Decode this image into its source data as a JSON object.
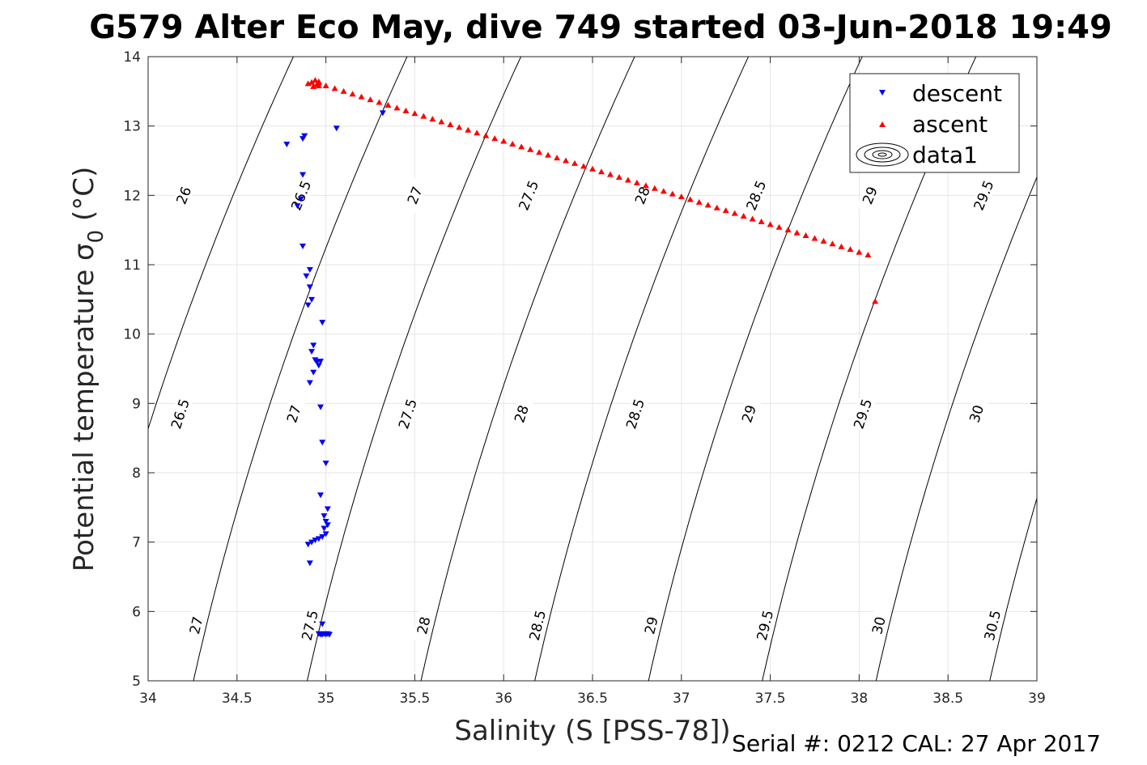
{
  "chart_data": {
    "type": "scatter",
    "title": "G579 Alter Eco May, dive 749 started 03-Jun-2018 19:49",
    "xlabel": "Salinity (S [PSS-78])",
    "ylabel": "Potential temperature σ",
    "ylabel_sub": "0",
    "ylabel_unit": " (°C)",
    "footer": "Serial #: 0212  CAL: 27 Apr 2017",
    "xlim": [
      34,
      39
    ],
    "ylim": [
      5,
      14
    ],
    "xticks": [
      34,
      34.5,
      35,
      35.5,
      36,
      36.5,
      37,
      37.5,
      38,
      38.5,
      39
    ],
    "xtick_labels": [
      "34",
      "34.5",
      "35",
      "35.5",
      "36",
      "36.5",
      "37",
      "37.5",
      "38",
      "38.5",
      "39"
    ],
    "yticks": [
      5,
      6,
      7,
      8,
      9,
      10,
      11,
      12,
      13,
      14
    ],
    "ytick_labels": [
      "5",
      "6",
      "7",
      "8",
      "9",
      "10",
      "11",
      "12",
      "13",
      "14"
    ],
    "grid": true,
    "legend_position": "top-right",
    "legend": [
      "descent",
      "ascent",
      "data1"
    ],
    "series": [
      {
        "name": "descent",
        "marker": "triangle-down",
        "color": "#0000ff",
        "x": [
          35.06,
          35.32,
          34.88,
          34.87,
          34.78,
          34.87,
          34.86,
          34.84,
          34.87,
          34.91,
          34.89,
          34.91,
          34.92,
          34.9,
          34.98,
          34.93,
          34.92,
          34.94,
          34.95,
          34.97,
          34.96,
          34.93,
          34.91,
          34.97,
          34.98,
          35.0,
          34.97,
          35.01,
          34.99,
          35.0,
          35.01,
          34.99,
          35.0,
          34.98,
          34.96,
          34.94,
          34.92,
          34.9,
          34.91,
          34.98,
          34.96,
          34.97,
          34.98,
          34.99,
          35.0,
          35.01,
          35.02
        ],
        "y": [
          12.97,
          13.19,
          12.86,
          12.82,
          12.74,
          12.3,
          11.95,
          11.85,
          11.27,
          10.93,
          10.84,
          10.68,
          10.5,
          10.42,
          10.17,
          9.84,
          9.75,
          9.63,
          9.6,
          9.61,
          9.55,
          9.45,
          9.3,
          8.95,
          8.44,
          8.14,
          7.68,
          7.48,
          7.38,
          7.3,
          7.25,
          7.2,
          7.12,
          7.08,
          7.05,
          7.03,
          7.0,
          6.97,
          6.7,
          5.82,
          5.68,
          5.67,
          5.67,
          5.68,
          5.67,
          5.68,
          5.67
        ]
      },
      {
        "name": "ascent",
        "marker": "triangle-up",
        "color": "#ff0000",
        "x": [
          34.9,
          34.92,
          34.94,
          34.96,
          34.96,
          34.95,
          34.96,
          34.93,
          35.0,
          35.05,
          35.1,
          35.15,
          35.2,
          35.25,
          35.3,
          35.35,
          35.4,
          35.45,
          35.5,
          35.55,
          35.6,
          35.65,
          35.7,
          35.75,
          35.8,
          35.85,
          35.9,
          35.95,
          36.0,
          36.05,
          36.1,
          36.15,
          36.2,
          36.25,
          36.3,
          36.35,
          36.4,
          36.45,
          36.5,
          36.55,
          36.6,
          36.65,
          36.7,
          36.75,
          36.8,
          36.85,
          36.9,
          36.95,
          37.0,
          37.05,
          37.1,
          37.15,
          37.2,
          37.25,
          37.3,
          37.35,
          37.4,
          37.45,
          37.5,
          37.55,
          37.6,
          37.65,
          37.7,
          37.75,
          37.8,
          37.85,
          37.9,
          37.95,
          38.0,
          38.05,
          38.09
        ],
        "y": [
          13.61,
          13.63,
          13.66,
          13.62,
          13.58,
          13.6,
          13.64,
          13.57,
          13.58,
          13.54,
          13.5,
          13.46,
          13.42,
          13.38,
          13.34,
          13.3,
          13.26,
          13.22,
          13.18,
          13.14,
          13.1,
          13.06,
          13.02,
          12.98,
          12.94,
          12.9,
          12.86,
          12.82,
          12.78,
          12.74,
          12.7,
          12.66,
          12.62,
          12.58,
          12.54,
          12.5,
          12.46,
          12.42,
          12.38,
          12.34,
          12.3,
          12.26,
          12.22,
          12.18,
          12.14,
          12.1,
          12.06,
          12.02,
          11.98,
          11.94,
          11.9,
          11.86,
          11.82,
          11.78,
          11.74,
          11.7,
          11.66,
          11.62,
          11.58,
          11.54,
          11.5,
          11.46,
          11.42,
          11.38,
          11.34,
          11.3,
          11.26,
          11.22,
          11.18,
          11.14,
          10.47
        ]
      }
    ],
    "contours": [
      {
        "sigma": "26",
        "x0": 33.615,
        "labels": [
          [
            34.2,
            12.0
          ]
        ]
      },
      {
        "sigma": "26.5",
        "x0": 34.255,
        "labels": [
          [
            34.86,
            12.0
          ],
          [
            34.18,
            8.85
          ]
        ]
      },
      {
        "sigma": "27",
        "x0": 34.895,
        "labels": [
          [
            35.5,
            12.0
          ],
          [
            34.82,
            8.85
          ],
          [
            34.27,
            5.8
          ]
        ]
      },
      {
        "sigma": "27.5",
        "x0": 35.535,
        "labels": [
          [
            36.14,
            12.0
          ],
          [
            35.46,
            8.85
          ],
          [
            34.91,
            5.8
          ]
        ]
      },
      {
        "sigma": "28",
        "x0": 36.175,
        "labels": [
          [
            36.78,
            12.0
          ],
          [
            36.1,
            8.85
          ],
          [
            35.55,
            5.8
          ]
        ]
      },
      {
        "sigma": "28.5",
        "x0": 36.815,
        "labels": [
          [
            37.42,
            12.0
          ],
          [
            36.74,
            8.85
          ],
          [
            36.19,
            5.8
          ]
        ]
      },
      {
        "sigma": "29",
        "x0": 37.455,
        "labels": [
          [
            38.06,
            12.0
          ],
          [
            37.38,
            8.85
          ],
          [
            36.83,
            5.8
          ]
        ]
      },
      {
        "sigma": "29.5",
        "x0": 38.095,
        "labels": [
          [
            38.7,
            12.0
          ],
          [
            38.02,
            8.85
          ],
          [
            37.47,
            5.8
          ]
        ]
      },
      {
        "sigma": "30",
        "x0": 38.735,
        "labels": [
          [
            38.66,
            8.85
          ],
          [
            38.11,
            5.8
          ]
        ]
      },
      {
        "sigma": "30.5",
        "x0": 39.375,
        "labels": [
          [
            38.75,
            5.8
          ]
        ]
      }
    ]
  }
}
